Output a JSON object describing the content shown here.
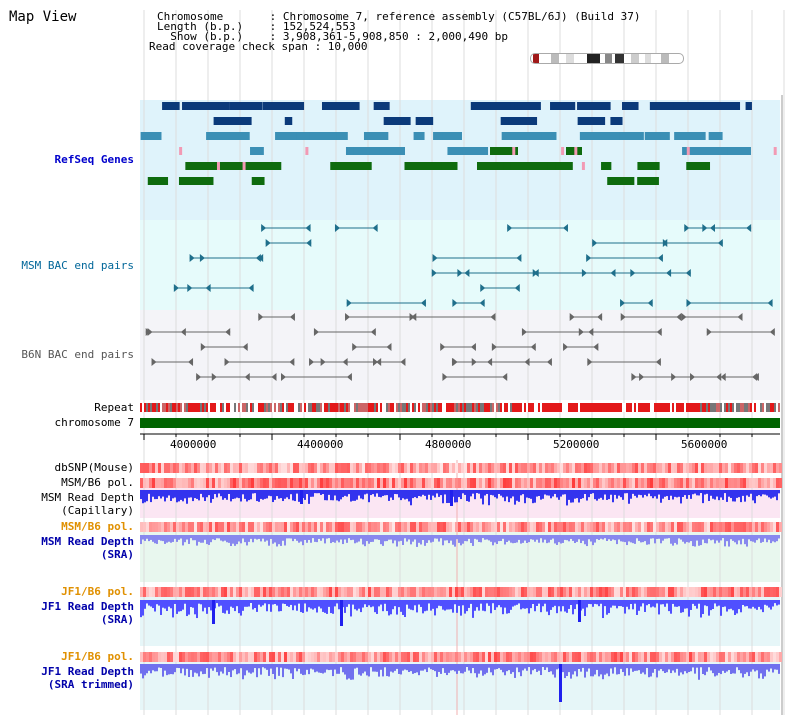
{
  "header": {
    "title": "Map View",
    "info_lines": [
      "Chromosome       : Chromosome 7, reference assembly (C57BL/6J) (Build 37)",
      "Length (b.p.)    : 152,524,553",
      "  Show (b.p.)    : 3,908,361-5,908,850 : 2,000,490 bp",
      "Read coverage check span : 10,000"
    ]
  },
  "tracks": {
    "refseq": "RefSeq Genes",
    "msm_bac": "MSM BAC end pairs",
    "b6n_bac": "B6N BAC end pairs",
    "repeat": "Repeat",
    "chromosome": "chromosome 7",
    "dbsnp": "dbSNP(Mouse)",
    "msm_b6_pol_1": "MSM/B6 pol.",
    "msm_read_depth_cap_1": "MSM Read Depth",
    "msm_read_depth_cap_2": "(Capillary)",
    "msm_b6_pol_2": "MSM/B6 pol.",
    "msm_read_depth_sra_1": "MSM Read Depth",
    "msm_read_depth_sra_2": "(SRA)",
    "jf1_b6_pol_1": "JF1/B6 pol.",
    "jf1_read_depth_sra_1": "JF1 Read Depth",
    "jf1_read_depth_sra_2": "(SRA)",
    "jf1_b6_pol_2": "JF1/B6 pol.",
    "jf1_read_depth_trim_1": "JF1 Read Depth",
    "jf1_read_depth_trim_2": "(SRA trimmed)"
  },
  "axis": {
    "ticks": [
      "4000000",
      "4400000",
      "4800000",
      "5200000",
      "5600000"
    ]
  },
  "colors": {
    "refseq_bg": "#dff3fb",
    "msm_bac_bg": "#e6fbfb",
    "b6n_bac_bg": "#f4f4f8",
    "gene_navy": "#0b3a7a",
    "gene_steel": "#3b8fb5",
    "gene_green": "#0e6b0e",
    "gene_pink": "#f29ab4",
    "bac_teal": "#1f6f8b",
    "bac_grey": "#666666",
    "chrom_green": "#006400",
    "depth_blue": "#4040ff",
    "msm_pol_bg": "#fbe6f3",
    "sra_bg": "#e8f7ee"
  }
}
